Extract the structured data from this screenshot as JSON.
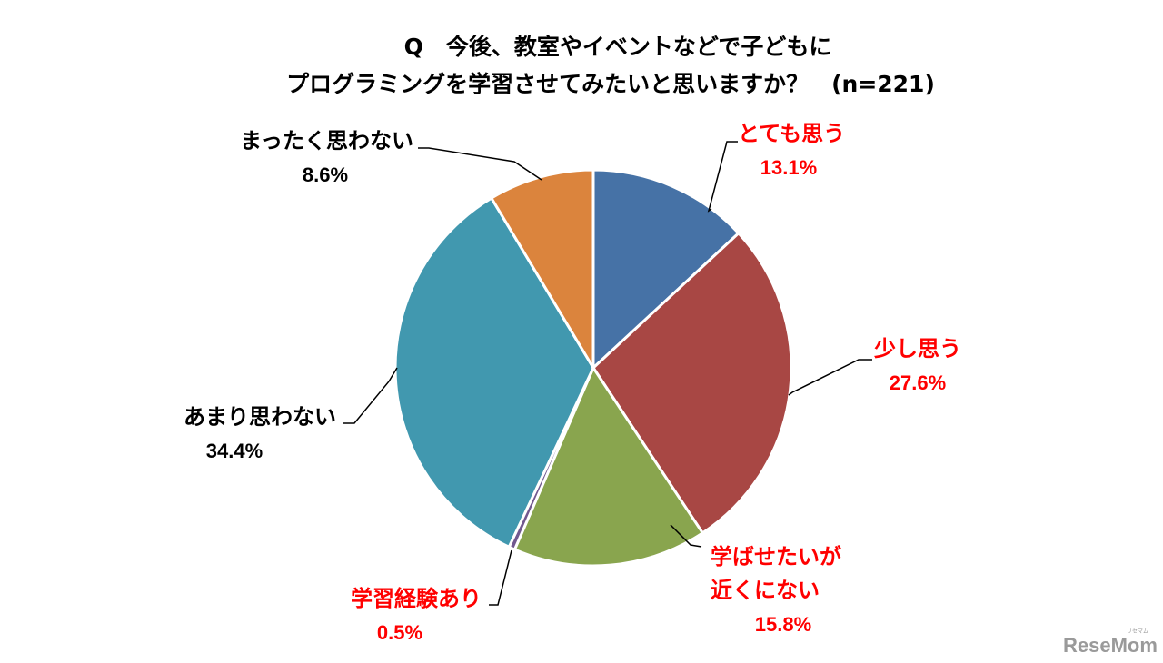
{
  "chart_data": {
    "type": "pie",
    "title": {
      "line1": "Q　今後、教室やイベントなどで子どもに",
      "line2": "プログラミングを学習させてみたいと思いますか？　(n=221)"
    },
    "start_angle": "12 o'clock",
    "direction": "clockwise",
    "slices": [
      {
        "label_lines": [
          "とても思う"
        ],
        "value": 13.1,
        "value_label": "13.1%",
        "color": "#4672A6",
        "label_color": "#FF0000"
      },
      {
        "label_lines": [
          "少し思う"
        ],
        "value": 27.6,
        "value_label": "27.6%",
        "color": "#A84744",
        "label_color": "#FF0000"
      },
      {
        "label_lines": [
          "学ばせたいが",
          "近くにない"
        ],
        "value": 15.8,
        "value_label": "15.8%",
        "color": "#89A54E",
        "label_color": "#FF0000"
      },
      {
        "label_lines": [
          "学習経験あり"
        ],
        "value": 0.5,
        "value_label": "0.5%",
        "color": "#71588F",
        "label_color": "#FF0000"
      },
      {
        "label_lines": [
          "あまり思わない"
        ],
        "value": 34.4,
        "value_label": "34.4%",
        "color": "#4198AF",
        "label_color": "#000000"
      },
      {
        "label_lines": [
          "まったく思わない"
        ],
        "value": 8.6,
        "value_label": "8.6%",
        "color": "#DB843D",
        "label_color": "#000000"
      }
    ]
  },
  "watermark": {
    "text": "ReseMom",
    "small_text": "リセマム"
  }
}
